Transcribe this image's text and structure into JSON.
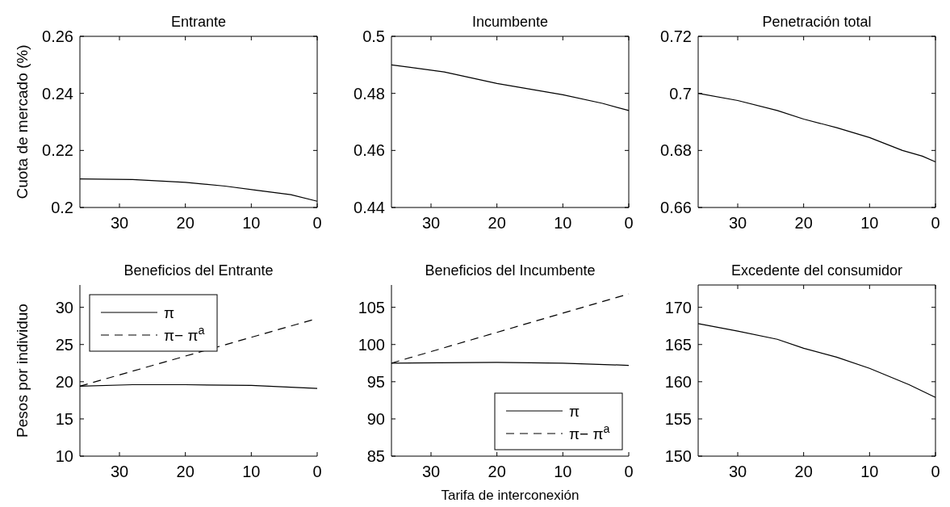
{
  "chart_data": [
    {
      "type": "line",
      "title": "Entrante",
      "ylabel": "Cuota de  mercado (%)",
      "xlim": [
        36,
        0
      ],
      "xticks": [
        30,
        20,
        10,
        0
      ],
      "ylim": [
        0.2,
        0.26
      ],
      "yticks": [
        0.2,
        0.22,
        0.24,
        0.26
      ],
      "grid": false,
      "legend": false,
      "series": [
        {
          "color": "#000000",
          "line_style": "solid",
          "x": [
            36,
            28,
            20,
            14,
            9,
            4,
            0
          ],
          "values": [
            0.21,
            0.2098,
            0.2088,
            0.2075,
            0.206,
            0.2045,
            0.2022
          ]
        }
      ]
    },
    {
      "type": "line",
      "title": "Incumbente",
      "xlim": [
        36,
        0
      ],
      "xticks": [
        30,
        20,
        10,
        0
      ],
      "ylim": [
        0.44,
        0.5
      ],
      "yticks": [
        0.44,
        0.46,
        0.48,
        0.5
      ],
      "grid": false,
      "legend": false,
      "series": [
        {
          "color": "#000000",
          "line_style": "solid",
          "x": [
            36,
            28,
            20,
            10,
            4,
            0
          ],
          "values": [
            0.49,
            0.4875,
            0.4835,
            0.4795,
            0.4765,
            0.474
          ]
        }
      ]
    },
    {
      "type": "line",
      "title": "Penetración total",
      "xlim": [
        36,
        0
      ],
      "xticks": [
        30,
        20,
        10,
        0
      ],
      "ylim": [
        0.66,
        0.72
      ],
      "yticks": [
        0.66,
        0.68,
        0.7,
        0.72
      ],
      "grid": false,
      "legend": false,
      "series": [
        {
          "color": "#000000",
          "line_style": "solid",
          "x": [
            36,
            30,
            24,
            20,
            15,
            10,
            5,
            2,
            0
          ],
          "values": [
            0.7,
            0.6975,
            0.694,
            0.691,
            0.688,
            0.6845,
            0.68,
            0.678,
            0.676
          ]
        }
      ]
    },
    {
      "type": "line",
      "title": "Beneficios del Entrante",
      "ylabel": "Pesos por individuo",
      "xlim": [
        36,
        0
      ],
      "xticks": [
        30,
        20,
        10,
        0
      ],
      "ylim": [
        10,
        33
      ],
      "yticks": [
        10,
        15,
        20,
        25,
        30
      ],
      "grid": false,
      "legend": "top left",
      "series": [
        {
          "name": "π",
          "color": "#000000",
          "line_style": "solid",
          "x": [
            36,
            28,
            20,
            10,
            0
          ],
          "values": [
            19.4,
            19.6,
            19.6,
            19.5,
            19.1
          ]
        },
        {
          "name": "π− π$^{a}$",
          "color": "#000000",
          "line_style": "dashed",
          "x": [
            36,
            0
          ],
          "values": [
            19.4,
            28.5
          ]
        }
      ]
    },
    {
      "type": "line",
      "title": "Beneficios del Incumbente",
      "xlabel": "Tarifa de interconexión",
      "xlim": [
        36,
        0
      ],
      "xticks": [
        30,
        20,
        10,
        0
      ],
      "ylim": [
        85,
        108
      ],
      "yticks": [
        85,
        90,
        95,
        100,
        105
      ],
      "grid": false,
      "legend": "bottom right",
      "series": [
        {
          "name": "π",
          "color": "#000000",
          "line_style": "solid",
          "x": [
            36,
            20,
            10,
            0
          ],
          "values": [
            97.5,
            97.6,
            97.5,
            97.2
          ]
        },
        {
          "name": "π− π$^{a}$",
          "color": "#000000",
          "line_style": "dashed",
          "x": [
            36,
            0
          ],
          "values": [
            97.5,
            106.8
          ]
        }
      ]
    },
    {
      "type": "line",
      "title": "Excedente del consumidor",
      "xlim": [
        36,
        0
      ],
      "xticks": [
        30,
        20,
        10,
        0
      ],
      "ylim": [
        150,
        173
      ],
      "yticks": [
        150,
        155,
        160,
        165,
        170
      ],
      "grid": false,
      "legend": false,
      "series": [
        {
          "color": "#000000",
          "line_style": "solid",
          "x": [
            36,
            30,
            24,
            20,
            15,
            10,
            4,
            0
          ],
          "values": [
            167.8,
            166.8,
            165.7,
            164.5,
            163.3,
            161.8,
            159.6,
            157.9
          ]
        }
      ]
    }
  ]
}
